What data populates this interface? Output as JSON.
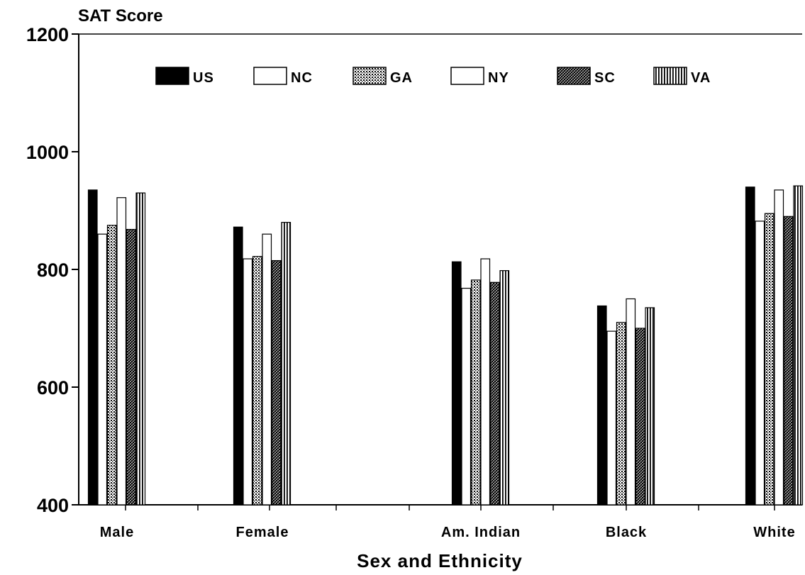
{
  "chart_data": {
    "type": "bar",
    "ylabel": "SAT Score",
    "xlabel": "Sex and Ethnicity",
    "ylim": [
      400,
      1200
    ],
    "yticks": [
      400,
      600,
      800,
      1000,
      1200
    ],
    "grid": false,
    "legend_position": "top",
    "categories": [
      "Male",
      "Female",
      "Am. Indian",
      "Black",
      "White"
    ],
    "series": [
      {
        "name": "US",
        "pattern": "solid",
        "values": [
          935,
          872,
          813,
          738,
          940
        ]
      },
      {
        "name": "NC",
        "pattern": "white",
        "values": [
          860,
          818,
          768,
          695,
          882
        ]
      },
      {
        "name": "GA",
        "pattern": "dots",
        "values": [
          875,
          822,
          782,
          710,
          895
        ]
      },
      {
        "name": "NY",
        "pattern": "white",
        "values": [
          922,
          860,
          818,
          750,
          935
        ]
      },
      {
        "name": "SC",
        "pattern": "crosshatch",
        "values": [
          868,
          815,
          778,
          700,
          890
        ]
      },
      {
        "name": "VA",
        "pattern": "vertical",
        "values": [
          930,
          880,
          798,
          735,
          942
        ]
      }
    ]
  }
}
